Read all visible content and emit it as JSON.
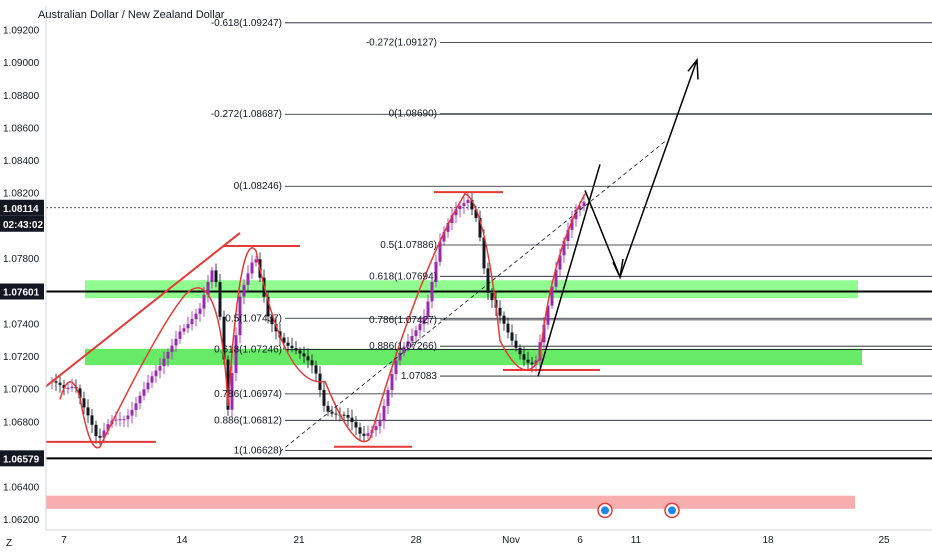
{
  "chart_data": {
    "type": "candlestick",
    "title": "Australian Dollar / New Zealand Dollar",
    "price_ticks": [
      "1.09200",
      "1.09000",
      "1.08800",
      "1.08600",
      "1.08400",
      "1.08200",
      "1.07800",
      "1.07400",
      "1.07200",
      "1.07000",
      "1.06800",
      "1.06400",
      "1.06200"
    ],
    "price_tick_values": [
      1.092,
      1.09,
      1.088,
      1.086,
      1.084,
      1.082,
      1.078,
      1.074,
      1.072,
      1.07,
      1.068,
      1.064,
      1.062
    ],
    "ylim": [
      1.0614,
      1.0935
    ],
    "date_ticks": [
      "7",
      "14",
      "21",
      "28",
      "Nov",
      "6",
      "11",
      "18",
      "25"
    ],
    "current_price": {
      "label": "1.08114",
      "value": 1.08114
    },
    "countdown": "02:43:02",
    "marked_levels": [
      {
        "label": "1.07601",
        "value": 1.07601
      },
      {
        "label": "1.06579",
        "value": 1.06579
      }
    ],
    "fib_labels": [
      {
        "text": "-0.618(1.09247)",
        "value": 1.09247
      },
      {
        "text": "-0.272(1.09127)",
        "value": 1.09127
      },
      {
        "text": "-0.272(1.08687)",
        "value": 1.08687
      },
      {
        "text": "0(1.08690)",
        "value": 1.0869
      },
      {
        "text": "0(1.08246)",
        "value": 1.08246
      },
      {
        "text": "0.5(1.07886)",
        "value": 1.07886
      },
      {
        "text": "0.618(1.07694)",
        "value": 1.07694
      },
      {
        "text": "0.5(1.07437)",
        "value": 1.07437
      },
      {
        "text": "0.786(1.07427)",
        "value": 1.07427
      },
      {
        "text": "0.618(1.07246)",
        "value": 1.07246
      },
      {
        "text": "0.886(1.07266)",
        "value": 1.07266
      },
      {
        "text": "1.07083",
        "value": 1.07083
      },
      {
        "text": "0.786(1.06974)",
        "value": 1.06974
      },
      {
        "text": "0.886(1.06812)",
        "value": 1.06812
      },
      {
        "text": "1(1.06628)",
        "value": 1.06628
      }
    ],
    "zones": [
      {
        "name": "upper",
        "low": 1.0756,
        "high": 1.0767,
        "color": "#7CFC7C"
      },
      {
        "name": "lower",
        "low": 1.0715,
        "high": 1.0725,
        "color": "#4CE84C"
      },
      {
        "name": "bottom",
        "low": 1.0627,
        "high": 1.0635,
        "color": "#F8A0A0"
      }
    ],
    "colors": {
      "up": "#9C27B0",
      "down": "#131722",
      "fib": "#131722",
      "swing": "#E53935",
      "arrow": "#000000"
    },
    "axis_corner": "Z"
  }
}
